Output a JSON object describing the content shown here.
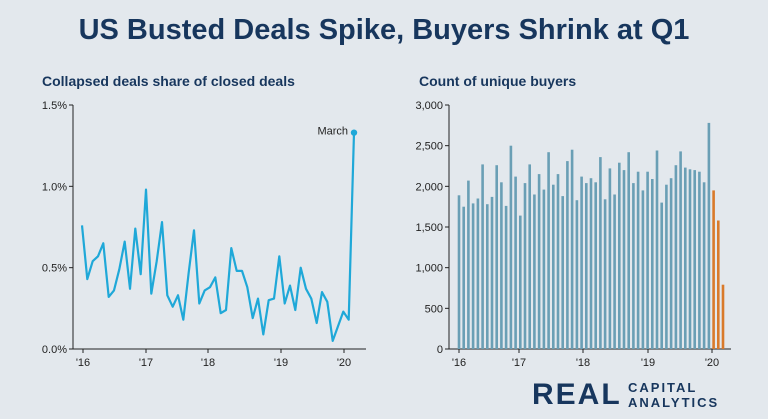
{
  "title": "US Busted Deals Spike, Buyers Shrink at Q1",
  "logo": {
    "word": "REAL",
    "line1": "CAPITAL",
    "line2": "ANALYTICS"
  },
  "colors": {
    "line": "#1fa8d8",
    "bar": "#6a9fb5",
    "bar_highlight": "#d97a2b",
    "title": "#17365d",
    "background": "#e3e8ed"
  },
  "chart_data": [
    {
      "type": "line",
      "title": "Collapsed deals share of closed deals",
      "xlabel": "",
      "ylabel": "",
      "x_tick_labels": [
        "'16",
        "'17",
        "'18",
        "'19",
        "'20"
      ],
      "y_tick_labels": [
        "0.0%",
        "0.5%",
        "1.0%",
        "1.5%"
      ],
      "ylim": [
        0,
        1.5
      ],
      "grid": false,
      "annotation": "March",
      "series": [
        {
          "values": [
            0.76,
            0.43,
            0.54,
            0.57,
            0.65,
            0.32,
            0.36,
            0.49,
            0.66,
            0.37,
            0.74,
            0.46,
            0.98,
            0.34,
            0.54,
            0.78,
            0.33,
            0.26,
            0.33,
            0.18,
            0.47,
            0.73,
            0.28,
            0.36,
            0.38,
            0.44,
            0.22,
            0.24,
            0.62,
            0.48,
            0.48,
            0.38,
            0.19,
            0.31,
            0.09,
            0.3,
            0.31,
            0.57,
            0.28,
            0.39,
            0.24,
            0.5,
            0.37,
            0.31,
            0.16,
            0.35,
            0.29,
            0.05,
            0.14,
            0.23,
            0.18,
            1.33
          ]
        }
      ]
    },
    {
      "type": "bar",
      "title": "Count of unique buyers",
      "xlabel": "",
      "ylabel": "",
      "x_tick_labels": [
        "'16",
        "'17",
        "'18",
        "'19",
        "'20"
      ],
      "y_tick_labels": [
        "0",
        "500",
        "1,000",
        "1,500",
        "2,000",
        "2,500",
        "3,000"
      ],
      "ylim": [
        0,
        3000
      ],
      "grid": false,
      "series": [
        {
          "values": [
            1890,
            1750,
            2070,
            1790,
            1850,
            2270,
            1780,
            1870,
            2260,
            2050,
            1760,
            2500,
            2120,
            1640,
            2040,
            2270,
            1900,
            2150,
            1960,
            2420,
            2020,
            2150,
            1880,
            2310,
            2450,
            1830,
            2120,
            2040,
            2100,
            2050,
            2360,
            1840,
            2220,
            1900,
            2290,
            2200,
            2420,
            2040,
            2180,
            1950,
            2180,
            2090,
            2440,
            1800,
            2020,
            2100,
            2260,
            2430,
            2230,
            2210,
            2200,
            2180,
            2050,
            2780,
            1950,
            1580,
            790
          ]
        }
      ],
      "highlight_from_index": 54
    }
  ]
}
